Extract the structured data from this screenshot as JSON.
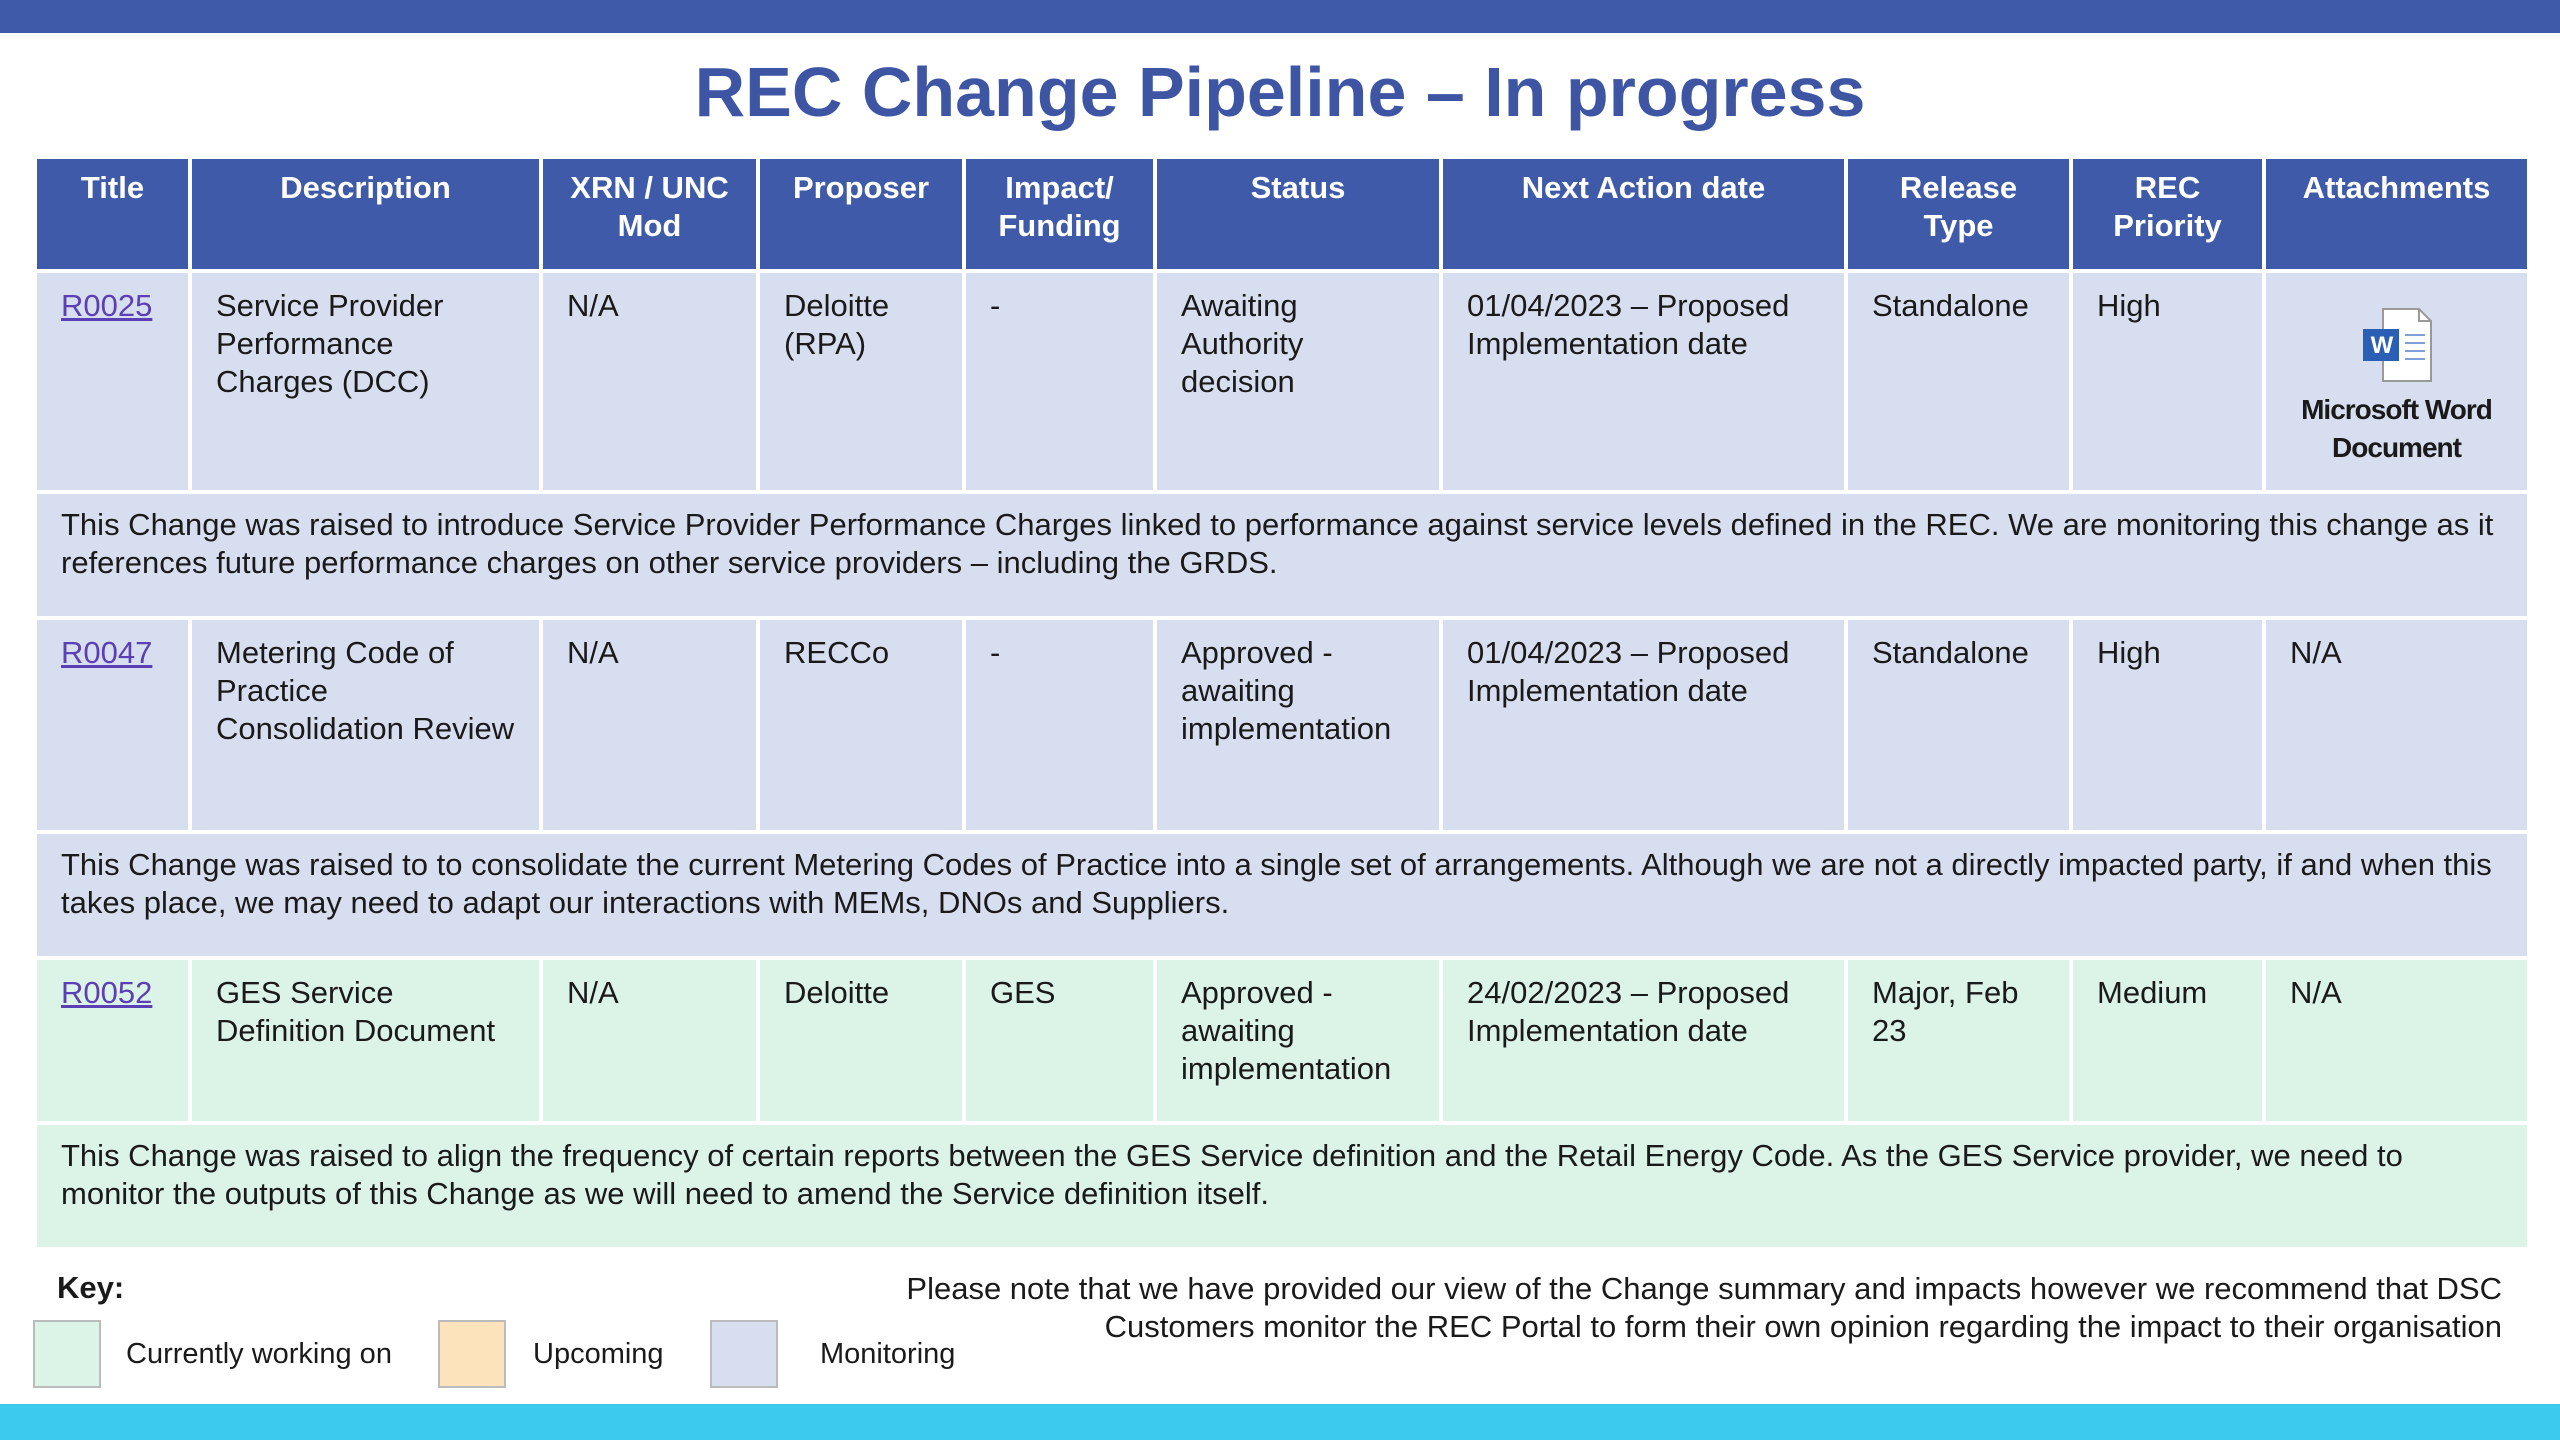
{
  "title": "REC Change Pipeline – In progress",
  "columns": [
    "Title",
    "Description",
    "XRN / UNC Mod",
    "Proposer",
    "Impact/ Funding",
    "Status",
    "Next Action date",
    "Release Type",
    "REC Priority",
    "Attachments"
  ],
  "rows": [
    {
      "color": "#d7deef",
      "cells": [
        "R0025",
        "Service Provider Performance Charges (DCC)",
        "N/A",
        "Deloitte (RPA)",
        "-",
        "Awaiting Authority decision",
        "01/04/2023 – Proposed Implementation date",
        "Standalone",
        "High",
        "Microsoft Word Document"
      ],
      "summary": "This Change was raised to introduce Service Provider Performance Charges linked to performance against service levels defined in the REC. We are monitoring this change as it references future performance charges on other service providers – including the GRDS."
    },
    {
      "color": "#d7deef",
      "cells": [
        "R0047",
        "Metering Code of Practice Consolidation Review",
        "N/A",
        "RECCo",
        "-",
        "Approved - awaiting implementation",
        "01/04/2023 – Proposed Implementation date",
        "Standalone",
        "High",
        "N/A"
      ],
      "summary": "This Change was raised to to consolidate the current Metering Codes of Practice into a single set of arrangements. Although we are not a directly impacted party, if and when this takes place, we may need to adapt our interactions with MEMs, DNOs and Suppliers."
    },
    {
      "color": "#dcf3e8",
      "cells": [
        "R0052",
        "GES Service Definition Document",
        "N/A",
        "Deloitte",
        "GES",
        "Approved - awaiting implementation",
        "24/02/2023 – Proposed Implementation date",
        "Major, Feb 23",
        "Medium",
        "N/A"
      ],
      "summary": "This Change was raised to align the frequency of certain reports between the GES Service definition and the Retail Energy Code. As the GES Service provider, we need to monitor the outputs of this Change as we will need to amend the Service definition itself."
    }
  ],
  "key": {
    "label": "Key:",
    "items": [
      {
        "name": "Currently working on",
        "color": "#dcf3e8"
      },
      {
        "name": "Upcoming",
        "color": "#fde3bb"
      },
      {
        "name": "Monitoring",
        "color": "#d7deef"
      }
    ]
  },
  "note": "Please note that we have provided our view of the Change summary and impacts however we recommend that DSC Customers monitor the REC Portal to form their own opinion regarding the impact to their organisation"
}
